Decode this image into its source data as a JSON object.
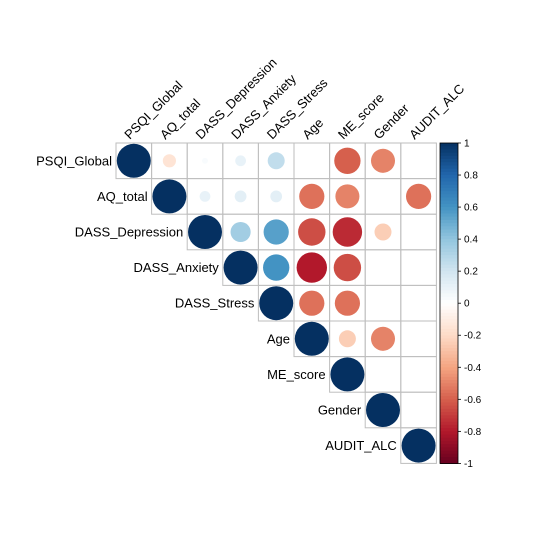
{
  "chart_data": {
    "type": "heatmap",
    "variant": "correlation-upper-circles",
    "variables": [
      "PSQI_Global",
      "AQ_total",
      "DASS_Depression",
      "DASS_Anxiety",
      "DASS_Stress",
      "Age",
      "ME_score",
      "Gender",
      "AUDIT_ALC"
    ],
    "values": [
      [
        1,
        -0.15,
        0.03,
        0.1,
        0.25,
        null,
        -0.6,
        -0.5,
        null
      ],
      [
        null,
        1,
        0.1,
        0.12,
        0.12,
        -0.55,
        -0.5,
        null,
        -0.55
      ],
      [
        null,
        null,
        1,
        0.35,
        0.55,
        -0.65,
        -0.75,
        -0.25,
        null
      ],
      [
        null,
        null,
        null,
        1,
        0.6,
        -0.8,
        -0.65,
        null,
        null
      ],
      [
        null,
        null,
        null,
        null,
        1,
        -0.55,
        -0.55,
        null,
        null
      ],
      [
        null,
        null,
        null,
        null,
        null,
        1,
        -0.25,
        -0.5,
        null
      ],
      [
        null,
        null,
        null,
        null,
        null,
        null,
        1,
        null,
        null
      ],
      [
        null,
        null,
        null,
        null,
        null,
        null,
        null,
        1,
        null
      ],
      [
        null,
        null,
        null,
        null,
        null,
        null,
        null,
        null,
        1
      ]
    ],
    "colorbar": {
      "range": [
        -1,
        1
      ],
      "tick_labels": [
        "1",
        "0.8",
        "0.6",
        "0.4",
        "0.2",
        "0",
        "-0.2",
        "-0.4",
        "-0.6",
        "-0.8",
        "-1"
      ]
    },
    "color_scale": [
      "#67001F",
      "#B2182B",
      "#D6604D",
      "#F4A582",
      "#FDDBC7",
      "#FFFFFF",
      "#D1E5F0",
      "#92C5DE",
      "#4393C3",
      "#2166AC",
      "#053061"
    ]
  }
}
